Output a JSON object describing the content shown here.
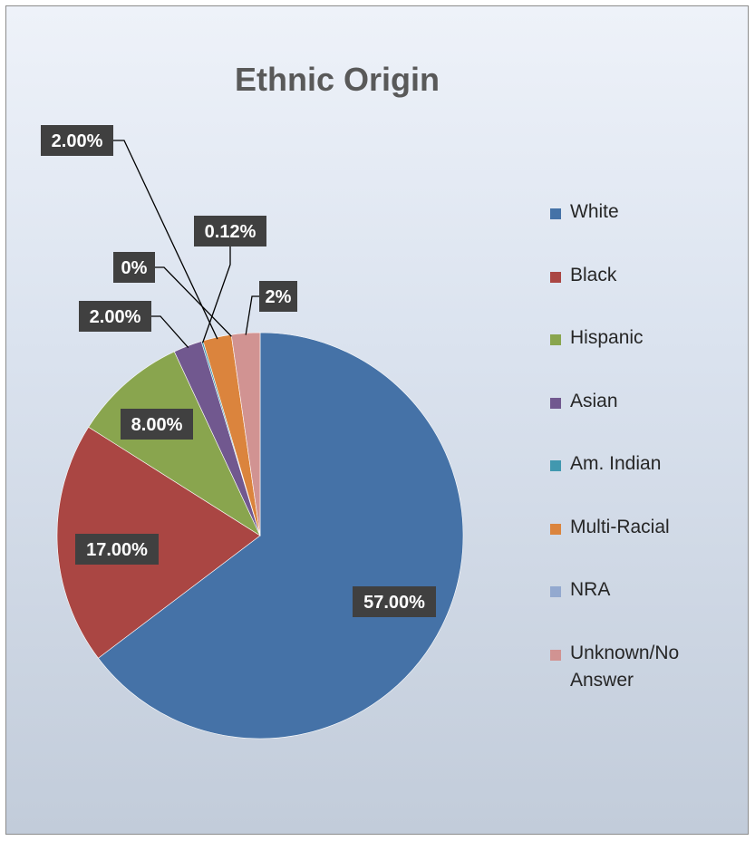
{
  "chart_data": {
    "type": "pie",
    "title": "Ethnic Origin",
    "slices": [
      {
        "name": "White",
        "value": 57.0,
        "label": "57.00%",
        "color": "#4572A7"
      },
      {
        "name": "Black",
        "value": 17.0,
        "label": "17.00%",
        "color": "#AA4643"
      },
      {
        "name": "Hispanic",
        "value": 8.0,
        "label": "8.00%",
        "color": "#89A54E"
      },
      {
        "name": "Asian",
        "value": 2.0,
        "label": "2.00%",
        "color": "#71588F"
      },
      {
        "name": "Am. Indian",
        "value": 0.12,
        "label": "0.12%",
        "color": "#4198AF"
      },
      {
        "name": "Multi-Racial",
        "value": 2.0,
        "label": "2.00%",
        "color": "#DB843D"
      },
      {
        "name": "NRA",
        "value": 0.0,
        "label": "0%",
        "color": "#93A9CF"
      },
      {
        "name": "Unknown/No Answer",
        "value": 2.0,
        "label": "2%",
        "color": "#D19392"
      }
    ],
    "legend_position": "right"
  }
}
